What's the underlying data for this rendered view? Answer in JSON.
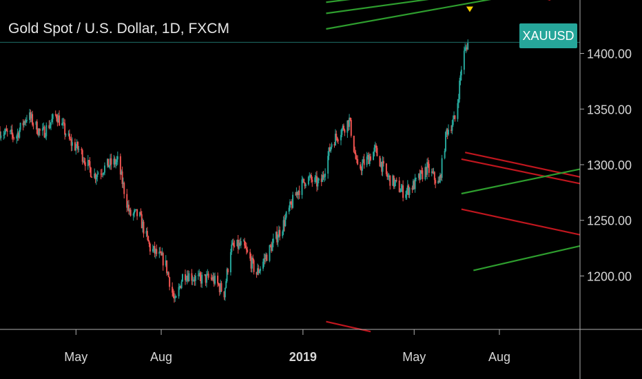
{
  "header": {
    "title": "Gold Spot / U.S. Dollar, 1D, FXCM"
  },
  "price_tag": {
    "label": "XAUUSD",
    "value": 1410
  },
  "colors": {
    "up": "#26a69a",
    "down": "#ef5350",
    "background": "#000000",
    "support": "#2e9e2e",
    "resistance": "#c0161e",
    "marker": "#f5d000"
  },
  "chart_data": {
    "type": "candlestick",
    "symbol": "XAUUSD",
    "title": "Gold Spot / U.S. Dollar, 1D, FXCM",
    "y_ticks": [
      1200,
      1250,
      1300,
      1350,
      1400
    ],
    "y_tick_labels": [
      "1200.00",
      "1250.00",
      "1300.00",
      "1350.00",
      "1400.00"
    ],
    "ylim": [
      1152,
      1448
    ],
    "x_tick_labels": [
      "May",
      "Aug",
      "2019",
      "May",
      "Aug"
    ],
    "x_ticks": [
      "2018-05-01",
      "2018-08-01",
      "2019-01-01",
      "2019-05-01",
      "2019-08-01"
    ],
    "xlim": [
      "2018-02-08",
      "2019-10-27"
    ],
    "close_path": [
      [
        "2018-02-08",
        1330
      ],
      [
        "2018-02-25",
        1325
      ],
      [
        "2018-03-10",
        1345
      ],
      [
        "2018-03-25",
        1327
      ],
      [
        "2018-04-10",
        1345
      ],
      [
        "2018-04-25",
        1320
      ],
      [
        "2018-05-05",
        1313
      ],
      [
        "2018-05-20",
        1290
      ],
      [
        "2018-06-05",
        1300
      ],
      [
        "2018-06-15",
        1303
      ],
      [
        "2018-06-28",
        1255
      ],
      [
        "2018-07-08",
        1255
      ],
      [
        "2018-07-20",
        1225
      ],
      [
        "2018-08-05",
        1213
      ],
      [
        "2018-08-16",
        1175
      ],
      [
        "2018-08-25",
        1203
      ],
      [
        "2018-09-10",
        1197
      ],
      [
        "2018-09-25",
        1198
      ],
      [
        "2018-10-08",
        1185
      ],
      [
        "2018-10-15",
        1225
      ],
      [
        "2018-10-28",
        1228
      ],
      [
        "2018-11-12",
        1202
      ],
      [
        "2018-11-25",
        1222
      ],
      [
        "2018-12-10",
        1245
      ],
      [
        "2018-12-25",
        1275
      ],
      [
        "2019-01-05",
        1288
      ],
      [
        "2019-01-20",
        1282
      ],
      [
        "2019-02-01",
        1320
      ],
      [
        "2019-02-20",
        1340
      ],
      [
        "2019-03-01",
        1295
      ],
      [
        "2019-03-20",
        1313
      ],
      [
        "2019-04-01",
        1290
      ],
      [
        "2019-04-20",
        1275
      ],
      [
        "2019-05-01",
        1282
      ],
      [
        "2019-05-15",
        1297
      ],
      [
        "2019-05-28",
        1282
      ],
      [
        "2019-06-05",
        1330
      ],
      [
        "2019-06-15",
        1342
      ],
      [
        "2019-06-22",
        1395
      ],
      [
        "2019-06-28",
        1410
      ]
    ],
    "marker_top": {
      "x": "2019-06-30",
      "y": 1439
    },
    "current_price": 1410,
    "trendlines": [
      {
        "color": "support",
        "points": [
          [
            "2019-01-26",
            1446
          ],
          [
            "2019-05-25",
            1458
          ]
        ]
      },
      {
        "color": "support",
        "points": [
          [
            "2019-01-26",
            1436
          ],
          [
            "2019-07-20",
            1456
          ]
        ]
      },
      {
        "color": "support",
        "points": [
          [
            "2019-01-26",
            1422
          ],
          [
            "2019-09-10",
            1456
          ]
        ]
      },
      {
        "color": "resistance",
        "points": [
          [
            "2019-09-16",
            1450
          ],
          [
            "2019-09-25",
            1448
          ]
        ]
      },
      {
        "color": "resistance",
        "points": [
          [
            "2019-06-25",
            1311
          ],
          [
            "2019-10-27",
            1289
          ]
        ]
      },
      {
        "color": "resistance",
        "points": [
          [
            "2019-06-21",
            1305
          ],
          [
            "2019-10-27",
            1283
          ]
        ]
      },
      {
        "color": "support",
        "points": [
          [
            "2019-06-21",
            1274
          ],
          [
            "2019-10-27",
            1296
          ]
        ]
      },
      {
        "color": "resistance",
        "points": [
          [
            "2019-06-21",
            1260
          ],
          [
            "2019-10-27",
            1237
          ]
        ]
      },
      {
        "color": "support",
        "points": [
          [
            "2019-07-04",
            1205
          ],
          [
            "2019-10-27",
            1227
          ]
        ]
      },
      {
        "color": "resistance",
        "points": [
          [
            "2019-01-26",
            1159
          ],
          [
            "2019-03-15",
            1150
          ]
        ]
      }
    ]
  }
}
